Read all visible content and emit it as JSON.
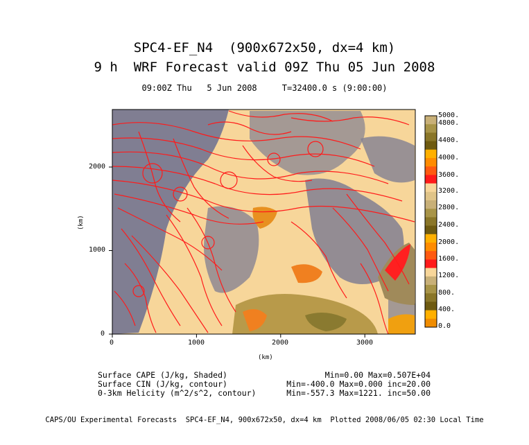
{
  "titles": {
    "line1": "SPC4-EF_N4  (900x672x50, dx=4 km)",
    "line2": "9 h  WRF Forecast valid 09Z Thu 05 Jun 2008",
    "time": "09:00Z Thu   5 Jun 2008     T=32400.0 s (9:00:00)"
  },
  "chart_data": {
    "type": "heatmap",
    "xlabel": "(km)",
    "ylabel": "(km)",
    "xticks": [
      "0",
      "1000",
      "2000",
      "3000"
    ],
    "yticks": [
      "0",
      "1000",
      "2000"
    ],
    "xlim": [
      0,
      3600
    ],
    "ylim": [
      0,
      2688
    ],
    "colorbar_labels": [
      "5000.",
      "4800.",
      "4400.",
      "4000.",
      "3600.",
      "3200.",
      "2800.",
      "2400.",
      "2000.",
      "1600.",
      "1200.",
      "800.",
      "400.",
      "0.0"
    ],
    "legend": [
      {
        "name": "Surface CAPE (J/kg, Shaded)",
        "stats": "Min=0.00  Max=0.507E+04"
      },
      {
        "name": "Surface CIN (J/kg, contour)",
        "stats": "Min=-400.0  Max=0.000  inc=20.00"
      },
      {
        "name": "0-3km Helicity (m^2/s^2, contour)",
        "stats": "Min=-557.3 Max=1221.  inc=50.00"
      }
    ],
    "colors": {
      "cape_low": "#f7d69a",
      "cin_contour": "#7a7a92",
      "helicity_contour": "#ff1a1a"
    }
  },
  "footer": "CAPS/OU Experimental Forecasts  SPC4-EF_N4, 900x672x50, dx=4 km  Plotted 2008/06/05 02:30 Local Time"
}
